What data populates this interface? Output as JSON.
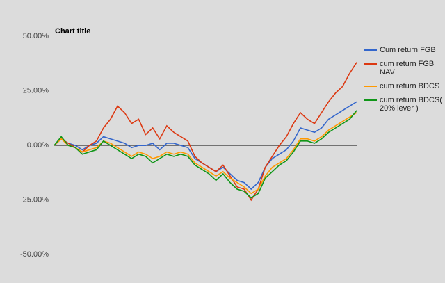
{
  "chart_data": {
    "type": "line",
    "title": "Chart title",
    "categories": [
      null,
      null,
      null,
      null,
      null,
      null,
      null,
      null,
      null,
      null,
      null,
      null,
      null,
      null,
      null,
      null,
      null,
      null,
      null,
      null,
      null,
      null,
      null,
      null,
      null,
      null,
      null,
      null,
      null,
      null,
      null,
      null,
      null,
      null,
      null,
      null,
      null,
      null,
      null,
      null,
      null,
      null,
      null,
      null
    ],
    "series": [
      {
        "name": "Cum return FGB",
        "color": "#3366cc",
        "values": [
          0,
          3,
          1,
          0,
          -2,
          0,
          1,
          4,
          3,
          2,
          1,
          -1,
          0,
          0,
          1,
          -2,
          1,
          1,
          0,
          -1,
          -6,
          -8,
          -10,
          -12,
          -10,
          -13,
          -16,
          -17,
          -20,
          -17,
          -10,
          -6,
          -4,
          -2,
          2,
          8,
          7,
          6,
          8,
          12,
          14,
          16,
          18,
          20
        ]
      },
      {
        "name": "cum return FGB NAV",
        "color": "#dc3912",
        "values": [
          0,
          3,
          1,
          -1,
          -3,
          0,
          2,
          8,
          12,
          18,
          15,
          10,
          12,
          5,
          8,
          3,
          9,
          6,
          4,
          2,
          -5,
          -8,
          -10,
          -12,
          -9,
          -14,
          -19,
          -20,
          -25,
          -20,
          -10,
          -5,
          0,
          4,
          10,
          15,
          12,
          10,
          15,
          20,
          24,
          27,
          33,
          38
        ]
      },
      {
        "name": "cum return BDCS",
        "color": "#ff9900",
        "values": [
          0,
          3,
          0,
          -1,
          -3,
          -2,
          -1,
          2,
          1,
          -1,
          -3,
          -5,
          -3,
          -4,
          -6,
          -5,
          -3,
          -4,
          -3,
          -4,
          -8,
          -10,
          -12,
          -14,
          -12,
          -15,
          -17,
          -19,
          -22,
          -20,
          -14,
          -10,
          -8,
          -6,
          -2,
          3,
          3,
          2,
          4,
          7,
          9,
          11,
          13,
          15
        ]
      },
      {
        "name": "cum return BDCS( 20% lever )",
        "color": "#109618",
        "values": [
          0,
          4,
          0,
          -1,
          -4,
          -3,
          -2,
          2,
          0,
          -2,
          -4,
          -6,
          -4,
          -5,
          -8,
          -6,
          -4,
          -5,
          -4,
          -5,
          -9,
          -11,
          -13,
          -16,
          -13,
          -17,
          -20,
          -21,
          -24,
          -22,
          -15,
          -12,
          -9,
          -7,
          -3,
          2,
          2,
          1,
          3,
          6,
          8,
          10,
          12,
          16
        ]
      }
    ],
    "ylim": [
      -55,
      50
    ],
    "yticks": [
      {
        "value": 50,
        "label": "50.00%"
      },
      {
        "value": 25,
        "label": "25.00%"
      },
      {
        "value": 0,
        "label": "0.00%"
      },
      {
        "value": -25,
        "label": "-25.00%"
      },
      {
        "value": -50,
        "label": "-50.00%"
      }
    ],
    "legend": "right"
  }
}
